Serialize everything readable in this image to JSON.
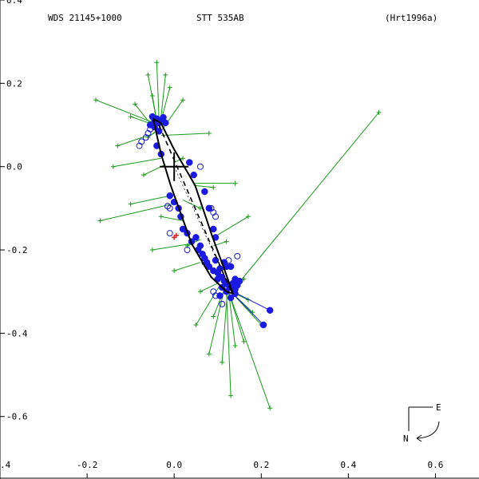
{
  "header": {
    "left": "WDS 21145+1000",
    "center": "STT 535AB",
    "right": "(Hrt1996a)"
  },
  "compass": {
    "east": "E",
    "north": "N"
  },
  "chart_data": {
    "type": "scatter",
    "xlim": [
      -0.4,
      0.7
    ],
    "ylim": [
      -0.75,
      0.4
    ],
    "x_ticks": [
      -0.4,
      -0.2,
      0.0,
      0.2,
      0.4,
      0.6
    ],
    "x_tick_labels": [
      "-0.4",
      "-0.2",
      "0.0",
      "0.2",
      "0.4",
      "0.6"
    ],
    "y_ticks": [
      0.4,
      0.2,
      0.0,
      -0.2,
      -0.4,
      -0.6
    ],
    "y_tick_labels": [
      "0.4",
      "0.2",
      "0.0",
      "-0.2",
      "-0.4",
      "-0.6"
    ],
    "primary_position": [
      0.0,
      0.0
    ],
    "orbit": [
      [
        -0.048,
        0.115
      ],
      [
        -0.03,
        0.104
      ],
      [
        -0.002,
        0.045
      ],
      [
        0.048,
        -0.045
      ],
      [
        0.087,
        -0.166
      ],
      [
        0.113,
        -0.24
      ],
      [
        0.135,
        -0.305
      ],
      [
        0.12,
        -0.3
      ],
      [
        0.085,
        -0.265
      ],
      [
        0.04,
        -0.185
      ],
      [
        -0.008,
        -0.045
      ],
      [
        -0.03,
        0.03
      ],
      [
        -0.042,
        0.085
      ],
      [
        -0.048,
        0.115
      ]
    ],
    "line_of_nodes": [
      [
        -0.035,
        0.1
      ],
      [
        0.132,
        -0.302
      ]
    ],
    "visual_series": [
      {
        "marker": "plus",
        "x": -0.04,
        "y": 0.25,
        "ox": -0.034,
        "oy": 0.093
      },
      {
        "marker": "plus",
        "x": -0.06,
        "y": 0.22,
        "ox": -0.038,
        "oy": 0.098
      },
      {
        "marker": "plus",
        "x": -0.02,
        "y": 0.22,
        "ox": -0.033,
        "oy": 0.09
      },
      {
        "marker": "plus",
        "x": -0.09,
        "y": 0.15,
        "ox": -0.045,
        "oy": 0.09
      },
      {
        "marker": "plus",
        "x": 0.02,
        "y": 0.16,
        "ox": -0.03,
        "oy": 0.085
      },
      {
        "marker": "plus",
        "x": -0.18,
        "y": 0.16,
        "ox": -0.046,
        "oy": 0.105
      },
      {
        "marker": "plus",
        "x": -0.13,
        "y": 0.05,
        "ox": -0.045,
        "oy": 0.08
      },
      {
        "marker": "plus",
        "x": 0.08,
        "y": 0.08,
        "ox": -0.03,
        "oy": 0.075
      },
      {
        "marker": "plus",
        "x": 0.47,
        "y": 0.13,
        "ox": 0.14,
        "oy": -0.29
      },
      {
        "marker": "plus",
        "x": -0.14,
        "y": 0.0,
        "ox": -0.03,
        "oy": 0.02
      },
      {
        "marker": "plus",
        "x": 0.14,
        "y": -0.04,
        "ox": 0.045,
        "oy": -0.04
      },
      {
        "marker": "plus",
        "x": -0.17,
        "y": -0.13,
        "ox": -0.005,
        "oy": -0.09
      },
      {
        "marker": "plus",
        "x": -0.1,
        "y": -0.09,
        "ox": -0.01,
        "oy": -0.07
      },
      {
        "marker": "plus",
        "x": 0.17,
        "y": -0.12,
        "ox": 0.09,
        "oy": -0.17
      },
      {
        "marker": "plus",
        "x": -0.05,
        "y": -0.2,
        "ox": 0.04,
        "oy": -0.185
      },
      {
        "marker": "plus",
        "x": 0.22,
        "y": -0.58,
        "ox": 0.125,
        "oy": -0.3
      },
      {
        "marker": "plus",
        "x": 0.13,
        "y": -0.55,
        "ox": 0.12,
        "oy": -0.3
      },
      {
        "marker": "plus",
        "x": 0.16,
        "y": -0.42,
        "ox": 0.125,
        "oy": -0.3
      },
      {
        "marker": "plus",
        "x": 0.08,
        "y": -0.45,
        "ox": 0.115,
        "oy": -0.295
      },
      {
        "marker": "plus",
        "x": 0.2,
        "y": -0.38,
        "ox": 0.13,
        "oy": -0.3
      },
      {
        "marker": "plus",
        "x": 0.05,
        "y": -0.38,
        "ox": 0.105,
        "oy": -0.285
      },
      {
        "marker": "plus",
        "x": 0.11,
        "y": -0.47,
        "ox": 0.122,
        "oy": -0.3
      },
      {
        "marker": "plus",
        "x": 0.17,
        "y": -0.32,
        "ox": 0.13,
        "oy": -0.3
      },
      {
        "marker": "plus",
        "x": 0.0,
        "y": -0.25,
        "ox": 0.06,
        "oy": -0.23
      },
      {
        "marker": "plus",
        "x": 0.06,
        "y": -0.1,
        "ox": 0.02,
        "oy": -0.08
      },
      {
        "marker": "plus",
        "x": -0.07,
        "y": -0.02,
        "ox": -0.02,
        "oy": 0.005
      },
      {
        "marker": "plus",
        "x": 0.02,
        "y": 0.02,
        "ox": 0.0,
        "oy": 0.01
      },
      {
        "marker": "plus",
        "x": -0.1,
        "y": 0.12,
        "ox": -0.045,
        "oy": 0.1
      },
      {
        "marker": "plus",
        "x": -0.06,
        "y": 0.07,
        "ox": -0.042,
        "oy": 0.085
      },
      {
        "marker": "plus",
        "x": 0.15,
        "y": -0.28,
        "ox": 0.125,
        "oy": -0.29
      },
      {
        "marker": "plus",
        "x": 0.06,
        "y": -0.3,
        "ox": 0.1,
        "oy": -0.28
      },
      {
        "marker": "plus",
        "x": 0.18,
        "y": -0.35,
        "ox": 0.13,
        "oy": -0.3
      },
      {
        "marker": "plus",
        "x": 0.09,
        "y": -0.36,
        "ox": 0.115,
        "oy": -0.295
      },
      {
        "marker": "plus",
        "x": 0.14,
        "y": -0.43,
        "ox": 0.125,
        "oy": -0.3
      },
      {
        "marker": "plus",
        "x": 0.03,
        "y": -0.19,
        "ox": 0.06,
        "oy": -0.175
      },
      {
        "marker": "plus",
        "x": 0.12,
        "y": -0.18,
        "ox": 0.09,
        "oy": -0.19
      },
      {
        "marker": "plus",
        "x": -0.03,
        "y": -0.12,
        "ox": 0.02,
        "oy": -0.13
      },
      {
        "marker": "plus",
        "x": 0.09,
        "y": -0.05,
        "ox": 0.045,
        "oy": -0.045
      },
      {
        "marker": "plus",
        "x": -0.01,
        "y": 0.19,
        "ox": -0.03,
        "oy": 0.11
      },
      {
        "marker": "plus",
        "x": -0.05,
        "y": 0.17,
        "ox": -0.04,
        "oy": 0.11
      },
      {
        "marker": "plus",
        "x": 0.12,
        "y": -0.24,
        "ox": 0.11,
        "oy": -0.25
      },
      {
        "marker": "plus",
        "x": 0.16,
        "y": -0.27,
        "ox": 0.13,
        "oy": -0.295
      }
    ],
    "speckle_series": [
      {
        "x": -0.05,
        "y": 0.12
      },
      {
        "x": -0.045,
        "y": 0.11
      },
      {
        "x": -0.04,
        "y": 0.115
      },
      {
        "x": -0.035,
        "y": 0.105
      },
      {
        "x": -0.03,
        "y": 0.112
      },
      {
        "x": -0.025,
        "y": 0.118
      },
      {
        "x": -0.02,
        "y": 0.105
      },
      {
        "x": -0.055,
        "y": 0.1
      },
      {
        "x": -0.045,
        "y": 0.095
      },
      {
        "x": -0.035,
        "y": 0.085
      },
      {
        "x": -0.04,
        "y": 0.05
      },
      {
        "x": -0.03,
        "y": 0.03
      },
      {
        "x": 0.035,
        "y": 0.01
      },
      {
        "x": 0.045,
        "y": -0.02
      },
      {
        "x": 0.07,
        "y": -0.06
      },
      {
        "x": 0.08,
        "y": -0.1
      },
      {
        "x": 0.09,
        "y": -0.15
      },
      {
        "x": 0.095,
        "y": -0.17
      },
      {
        "x": -0.01,
        "y": -0.07
      },
      {
        "x": 0.0,
        "y": -0.085
      },
      {
        "x": 0.01,
        "y": -0.1
      },
      {
        "x": 0.015,
        "y": -0.12
      },
      {
        "x": 0.02,
        "y": -0.15
      },
      {
        "x": 0.03,
        "y": -0.16
      },
      {
        "x": 0.04,
        "y": -0.18
      },
      {
        "x": 0.05,
        "y": -0.17
      },
      {
        "x": 0.06,
        "y": -0.19
      },
      {
        "x": 0.065,
        "y": -0.21
      },
      {
        "x": 0.075,
        "y": -0.23
      },
      {
        "x": 0.08,
        "y": -0.24
      },
      {
        "x": 0.09,
        "y": -0.25
      },
      {
        "x": 0.1,
        "y": -0.255
      },
      {
        "x": 0.11,
        "y": -0.265
      },
      {
        "x": 0.115,
        "y": -0.275
      },
      {
        "x": 0.12,
        "y": -0.28
      },
      {
        "x": 0.125,
        "y": -0.285
      },
      {
        "x": 0.13,
        "y": -0.29
      },
      {
        "x": 0.135,
        "y": -0.28
      },
      {
        "x": 0.14,
        "y": -0.27
      },
      {
        "x": 0.14,
        "y": -0.295
      },
      {
        "x": 0.145,
        "y": -0.285
      },
      {
        "x": 0.15,
        "y": -0.275
      },
      {
        "x": 0.12,
        "y": -0.3
      },
      {
        "x": 0.11,
        "y": -0.29
      },
      {
        "x": 0.1,
        "y": -0.27
      },
      {
        "x": 0.105,
        "y": -0.31
      },
      {
        "x": 0.13,
        "y": -0.315
      },
      {
        "x": 0.14,
        "y": -0.305
      },
      {
        "x": 0.12,
        "y": -0.24
      },
      {
        "x": 0.115,
        "y": -0.23
      },
      {
        "x": 0.13,
        "y": -0.24
      },
      {
        "x": 0.095,
        "y": -0.225
      },
      {
        "x": 0.105,
        "y": -0.245
      },
      {
        "x": 0.055,
        "y": -0.2
      },
      {
        "x": 0.07,
        "y": -0.22
      },
      {
        "x": 0.22,
        "y": -0.345
      },
      {
        "x": 0.205,
        "y": -0.38
      }
    ],
    "open_circles": [
      {
        "x": -0.08,
        "y": 0.05
      },
      {
        "x": -0.075,
        "y": 0.06
      },
      {
        "x": -0.065,
        "y": 0.07
      },
      {
        "x": -0.06,
        "y": 0.08
      },
      {
        "x": -0.055,
        "y": 0.09
      },
      {
        "x": 0.06,
        "y": 0.0
      },
      {
        "x": -0.01,
        "y": -0.1
      },
      {
        "x": -0.015,
        "y": -0.095
      },
      {
        "x": 0.085,
        "y": -0.1
      },
      {
        "x": 0.09,
        "y": -0.11
      },
      {
        "x": 0.095,
        "y": -0.12
      },
      {
        "x": -0.01,
        "y": -0.16
      },
      {
        "x": 0.03,
        "y": -0.2
      },
      {
        "x": 0.07,
        "y": -0.23
      },
      {
        "x": 0.125,
        "y": -0.225
      },
      {
        "x": 0.145,
        "y": -0.215
      },
      {
        "x": 0.09,
        "y": -0.3
      },
      {
        "x": 0.095,
        "y": -0.31
      },
      {
        "x": 0.11,
        "y": -0.33
      }
    ],
    "rejected": [
      {
        "x": 0.0,
        "y": -0.17
      },
      {
        "x": 0.005,
        "y": -0.165
      }
    ]
  }
}
